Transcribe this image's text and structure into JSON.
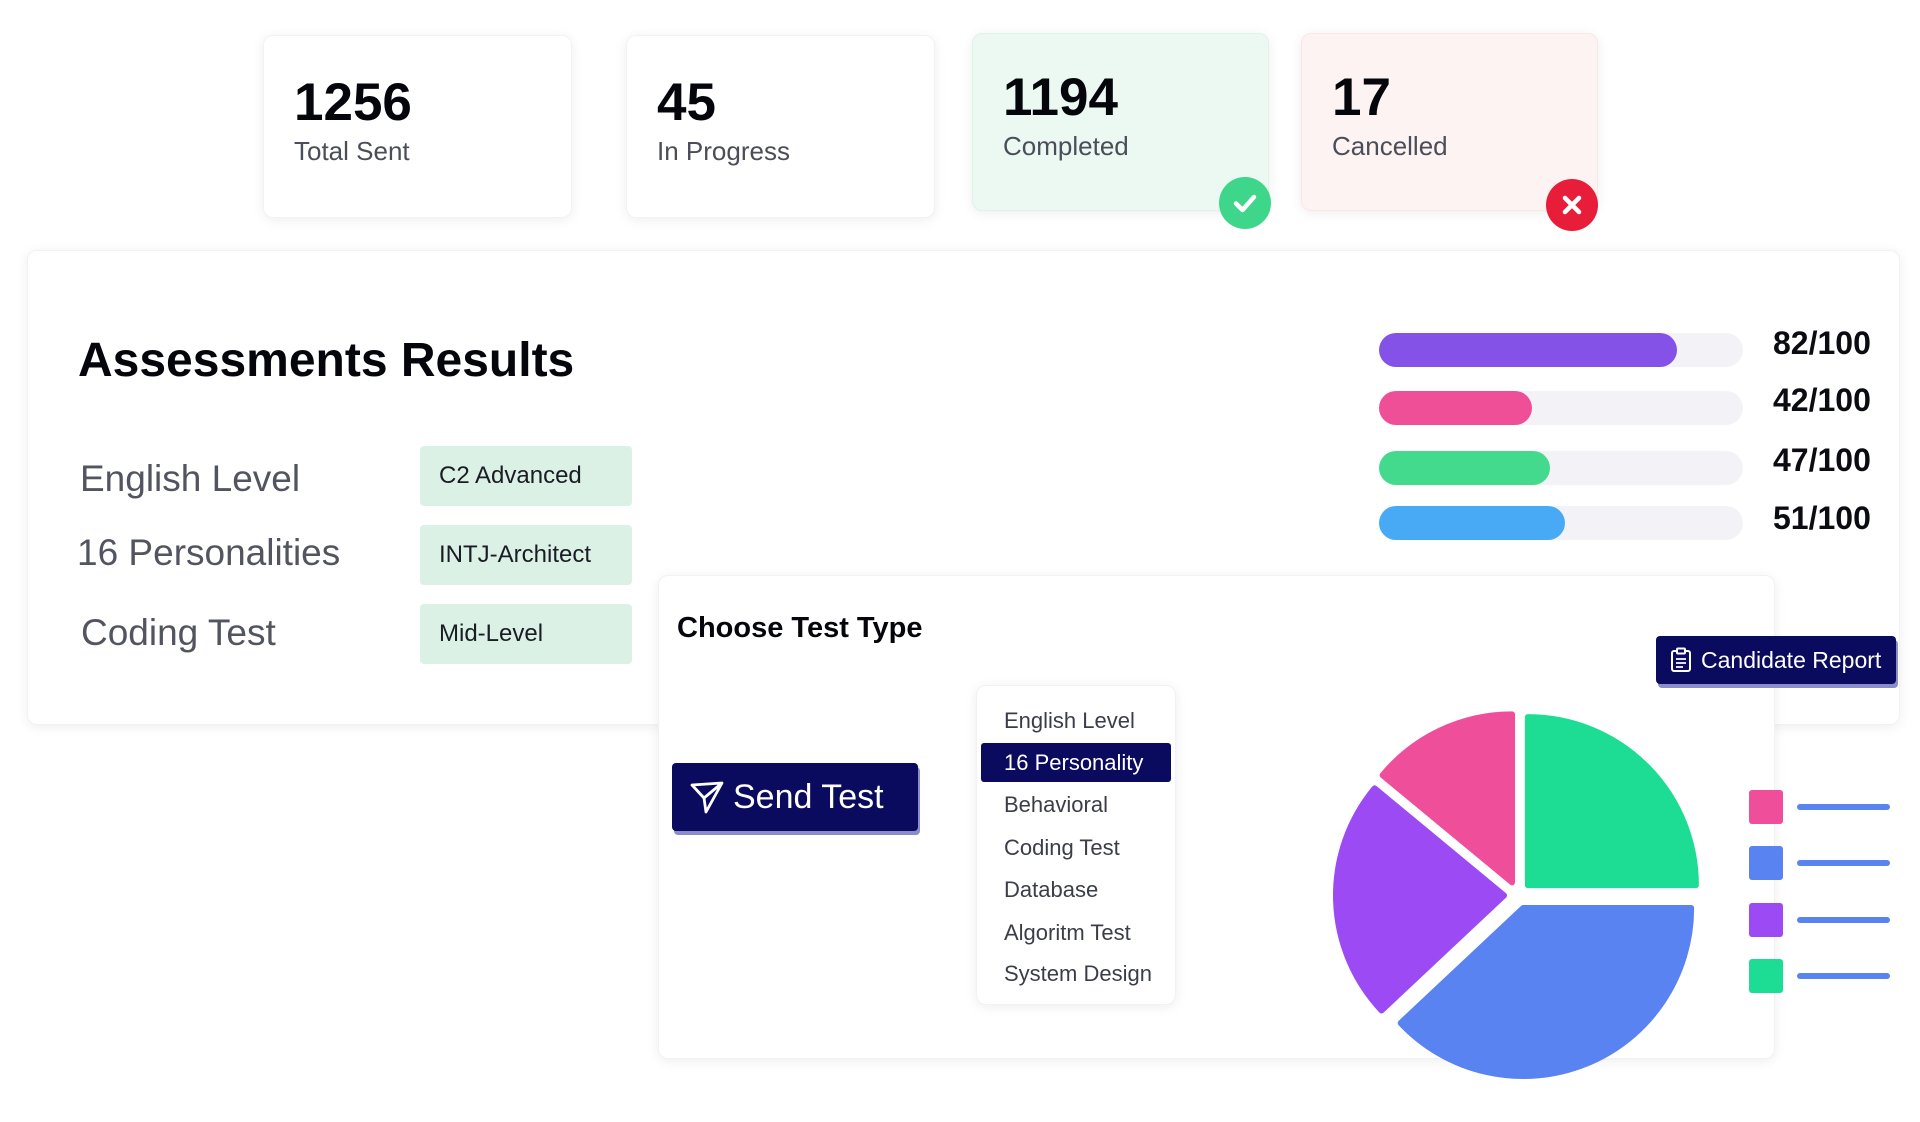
{
  "stats": [
    {
      "value": "1256",
      "label": "Total Sent"
    },
    {
      "value": "45",
      "label": "In Progress"
    },
    {
      "value": "1194",
      "label": "Completed",
      "status_icon": "check-circle-icon",
      "bg": "#ebf9f2",
      "icon_color": "#3dd68a"
    },
    {
      "value": "17",
      "label": "Cancelled",
      "status_icon": "x-circle-icon",
      "bg": "#fdf3f2",
      "icon_color": "#e81d3a"
    }
  ],
  "assessments": {
    "title": "Assessments Results",
    "rows": [
      {
        "label": "English Level",
        "result": "C2 Advanced"
      },
      {
        "label": "16 Personalities",
        "result": "INTJ-Architect"
      },
      {
        "label": "Coding Test",
        "result": "Mid-Level"
      }
    ],
    "scores": [
      {
        "text": "82/100",
        "value": 82,
        "max": 100,
        "color": "#8452e6"
      },
      {
        "text": "42/100",
        "value": 42,
        "max": 100,
        "color": "#ee4f97"
      },
      {
        "text": "47/100",
        "value": 47,
        "max": 100,
        "color": "#44da8e"
      },
      {
        "text": "51/100",
        "value": 51,
        "max": 100,
        "color": "#48a9f5"
      }
    ]
  },
  "test_panel": {
    "title": "Choose Test Type",
    "send_button": {
      "label": "Send Test",
      "icon": "send-icon"
    },
    "report_button": {
      "label": "Candidate Report",
      "icon": "clipboard-icon"
    },
    "test_types": [
      "English Level",
      "16 Personality",
      "Behavioral",
      "Coding Test",
      "Database",
      "Algoritm Test",
      "System Design"
    ],
    "selected_test_type": "16 Personality"
  },
  "chart_data": {
    "type": "pie",
    "exploded": true,
    "slices": [
      {
        "value": 25,
        "color": "#1ddc93"
      },
      {
        "value": 38,
        "color": "#5a83f2"
      },
      {
        "value": 23,
        "color": "#9b4af4"
      },
      {
        "value": 14,
        "color": "#ef4f9a"
      }
    ],
    "legend_colors": [
      "#ef4f9a",
      "#5a83f2",
      "#9b4af4",
      "#1ddc93"
    ],
    "legend_placement": "right",
    "title": "",
    "legend_labels_visible": false
  },
  "colors": {
    "navy": "#0a0a5e",
    "pill_green": "#dcf1e6",
    "track": "#f3f3f7"
  }
}
